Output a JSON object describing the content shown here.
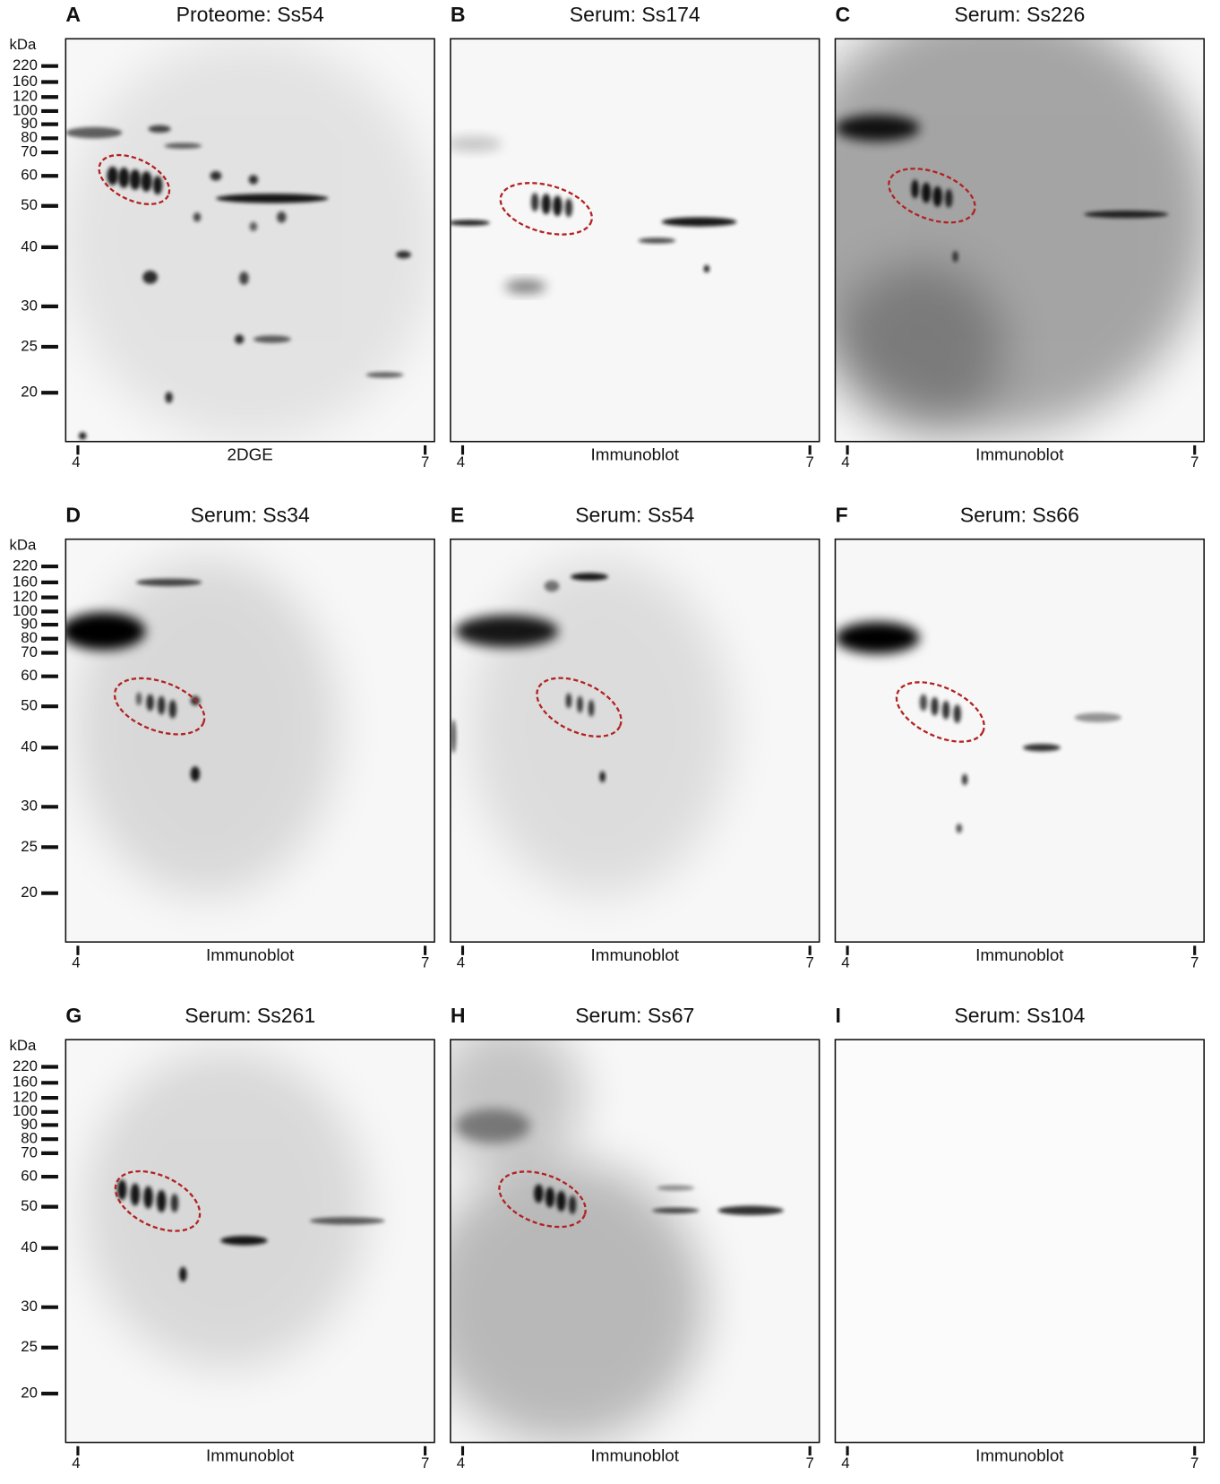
{
  "kda": {
    "label": "kDa",
    "markers": [
      220,
      160,
      120,
      100,
      90,
      80,
      70,
      60,
      50,
      40,
      30,
      25,
      20
    ]
  },
  "ph_ticks": [
    "4",
    "7"
  ],
  "panels": [
    {
      "letter": "A",
      "title": "Proteome: Ss54",
      "xlabel": "2DGE"
    },
    {
      "letter": "B",
      "title": "Serum: Ss174",
      "xlabel": "Immunoblot"
    },
    {
      "letter": "C",
      "title": "Serum: Ss226",
      "xlabel": "Immunoblot"
    },
    {
      "letter": "D",
      "title": "Serum: Ss34",
      "xlabel": "Immunoblot"
    },
    {
      "letter": "E",
      "title": "Serum: Ss54",
      "xlabel": "Immunoblot"
    },
    {
      "letter": "F",
      "title": "Serum: Ss66",
      "xlabel": "Immunoblot"
    },
    {
      "letter": "G",
      "title": "Serum: Ss261",
      "xlabel": "Immunoblot"
    },
    {
      "letter": "H",
      "title": "Serum: Ss67",
      "xlabel": "Immunoblot"
    },
    {
      "letter": "I",
      "title": "Serum: Ss104",
      "xlabel": "Immunoblot"
    }
  ]
}
